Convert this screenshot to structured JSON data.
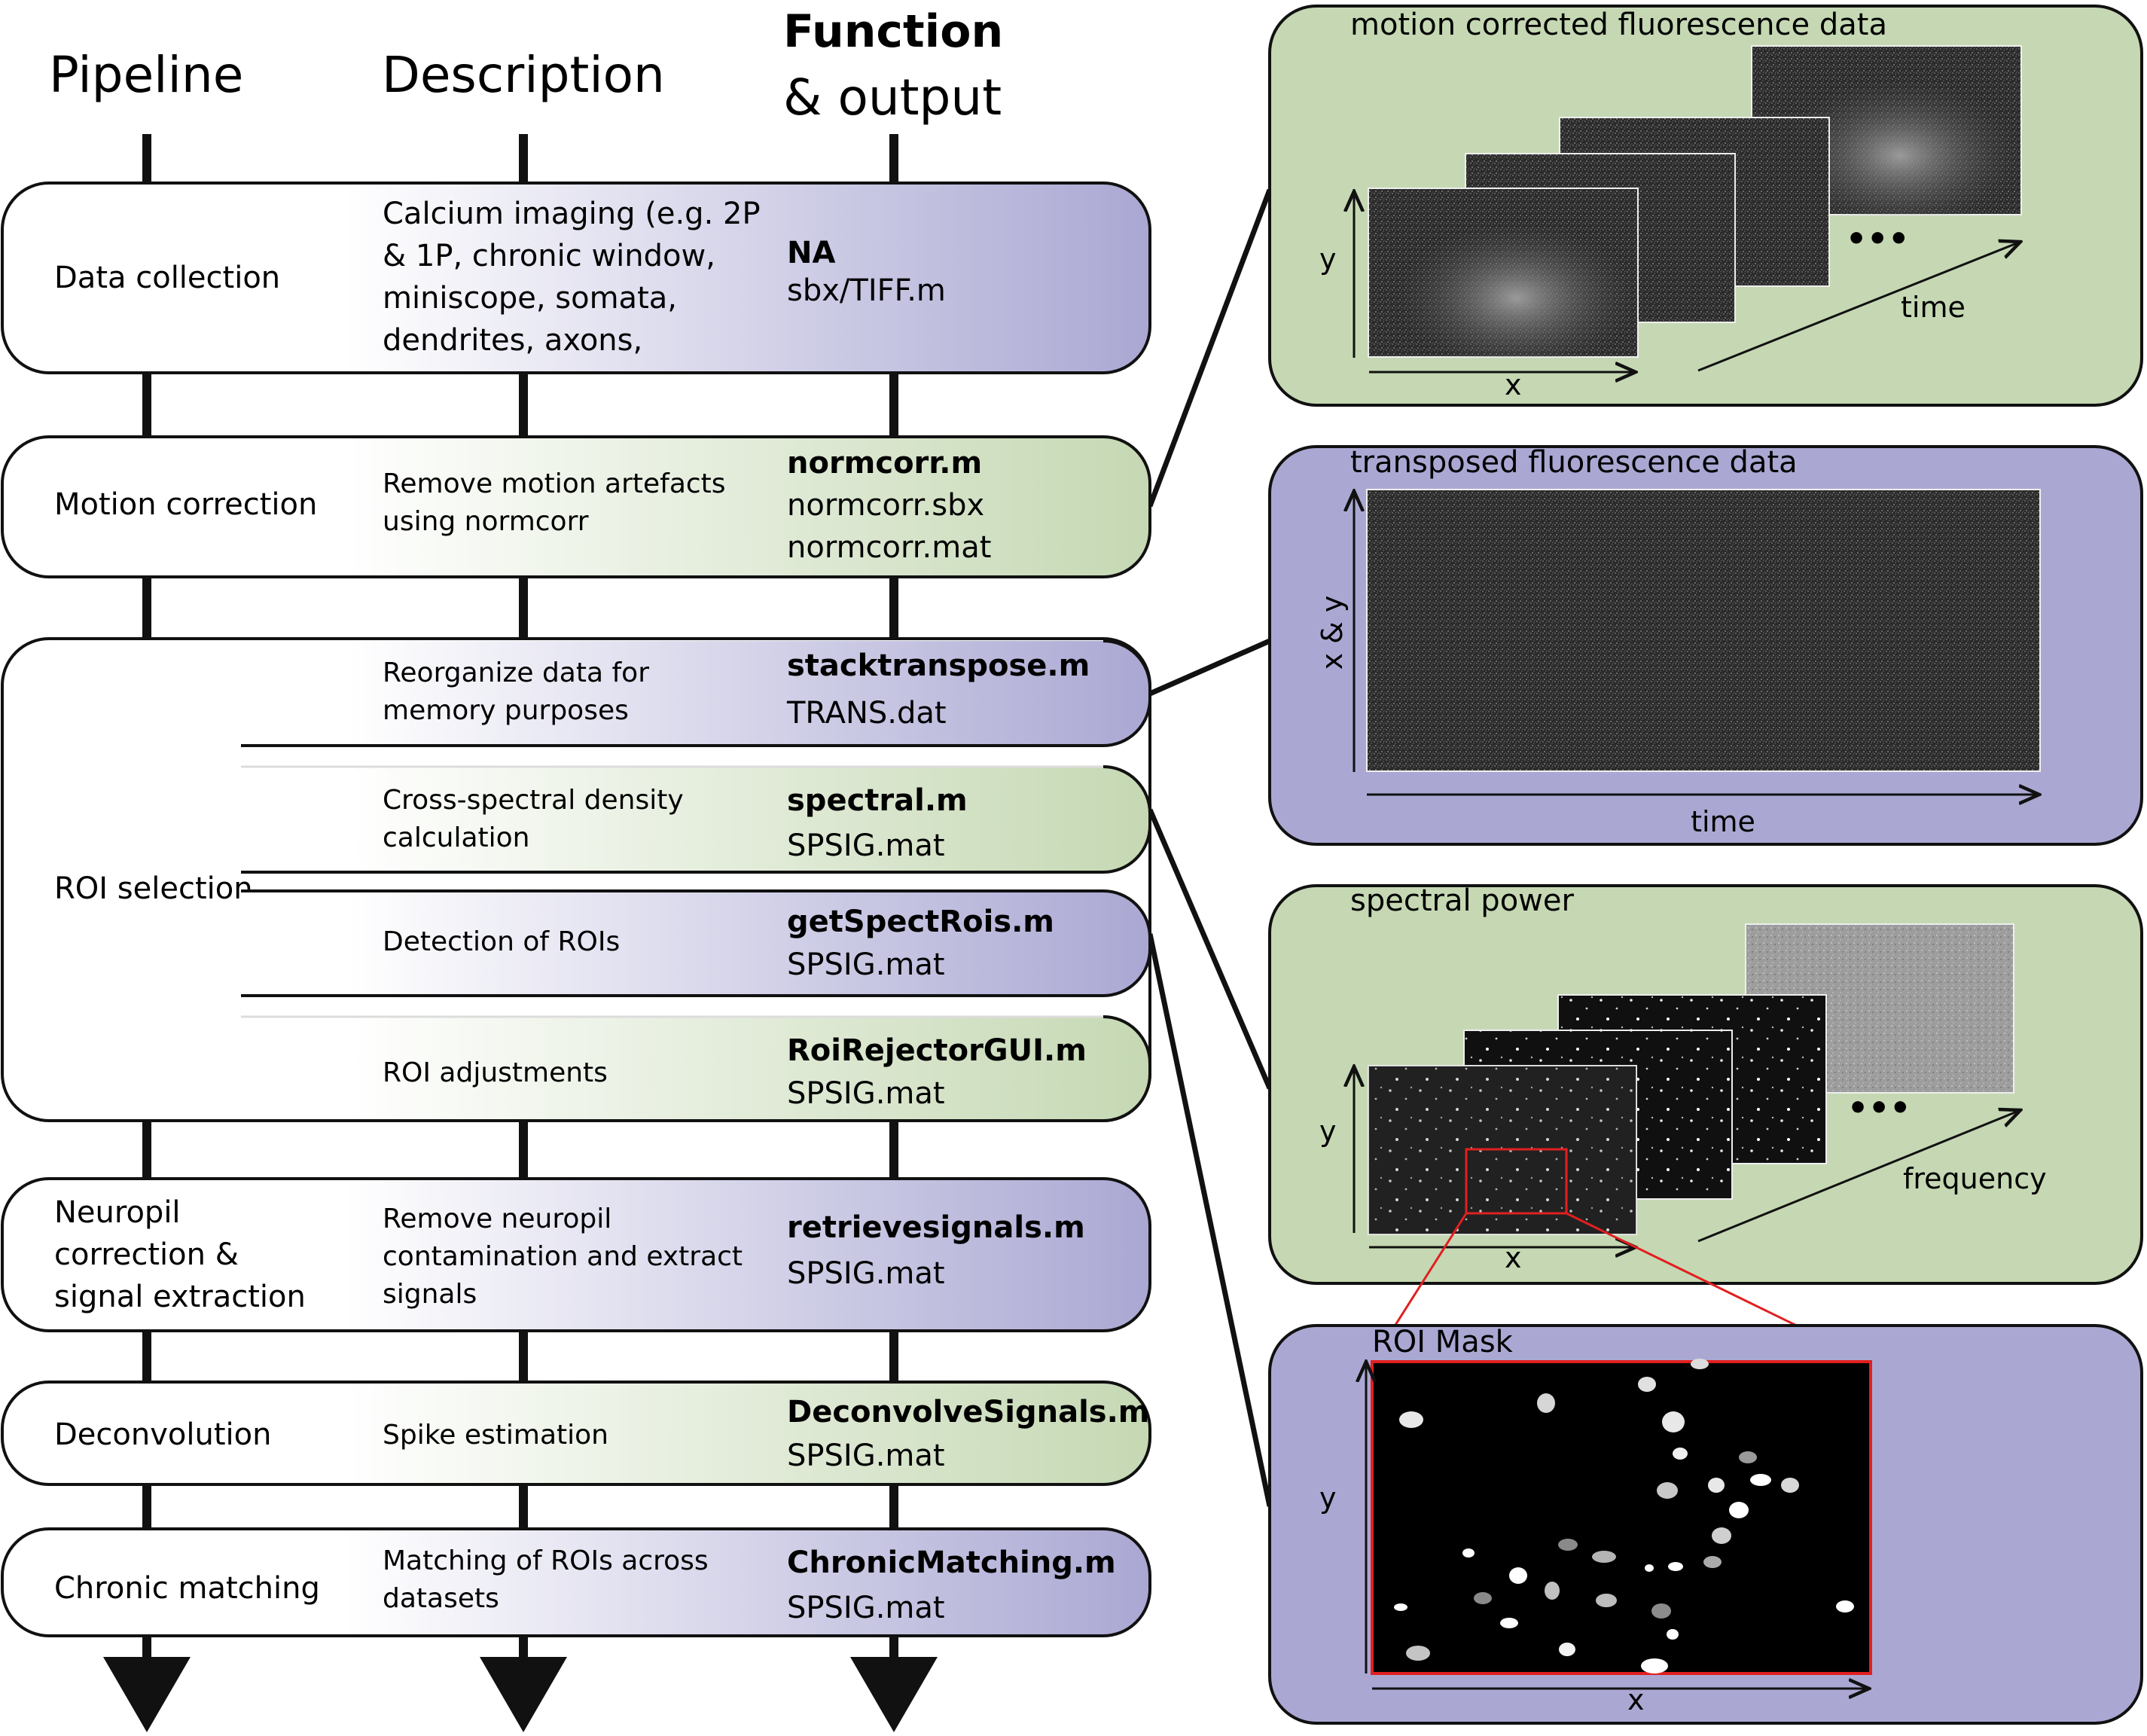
{
  "headers": {
    "pipeline": "Pipeline",
    "description": "Description",
    "function_line1": "Function",
    "function_line2": "& output"
  },
  "stages": {
    "data_collection": {
      "label": "Data collection",
      "desc": [
        "Calcium imaging (e.g. 2P",
        "& 1P, chronic window,",
        "miniscope, somata,",
        "dendrites, axons,"
      ],
      "function": "NA",
      "outputs": [
        "sbx/TIFF.m"
      ]
    },
    "motion_correction": {
      "label": "Motion correction",
      "desc": [
        "Remove motion artefacts",
        "using normcorr"
      ],
      "function": "normcorr.m",
      "outputs": [
        "normcorr.sbx",
        "normcorr.mat"
      ]
    },
    "roi_selection": {
      "label": "ROI selection",
      "steps": [
        {
          "desc": [
            "Reorganize data for",
            "memory purposes"
          ],
          "function": "stacktranspose.m",
          "output": "TRANS.dat"
        },
        {
          "desc": [
            "Cross-spectral density",
            "calculation"
          ],
          "function": "spectral.m",
          "output": "SPSIG.mat"
        },
        {
          "desc": [
            "Detection of ROIs"
          ],
          "function": "getSpectRois.m",
          "output": "SPSIG.mat"
        },
        {
          "desc": [
            "ROI adjustments"
          ],
          "function": "RoiRejectorGUI.m",
          "output": "SPSIG.mat"
        }
      ]
    },
    "neuropil": {
      "label": [
        "Neuropil",
        "correction &",
        "signal extraction"
      ],
      "desc": [
        "Remove neuropil",
        "contamination and extract",
        "signals"
      ],
      "function": "retrievesignals.m",
      "outputs": [
        "SPSIG.mat"
      ]
    },
    "deconvolution": {
      "label": "Deconvolution",
      "desc": [
        "Spike estimation"
      ],
      "function": "DeconvolveSignals.m",
      "outputs": [
        "SPSIG.mat"
      ]
    },
    "chronic": {
      "label": "Chronic matching",
      "desc": [
        "Matching of ROIs across",
        "datasets"
      ],
      "function": "ChronicMatching.m",
      "outputs": [
        "SPSIG.mat"
      ]
    }
  },
  "panels": {
    "motion_corrected": {
      "title": "motion corrected fluorescence data",
      "x": "x",
      "y": "y",
      "z": "time",
      "ellipsis": "•••"
    },
    "transposed": {
      "title": "transposed fluorescence data",
      "x": "time",
      "y": "x & y"
    },
    "spectral": {
      "title": "spectral power",
      "x": "x",
      "y": "y",
      "z": "frequency",
      "ellipsis": "•••"
    },
    "roi_mask": {
      "title": "ROI Mask",
      "x": "x",
      "y": "y"
    }
  },
  "colors": {
    "green": "#c5d8b3",
    "purple": "#aaa8d3",
    "stroke": "#111111",
    "zoom": "#e21f1f"
  }
}
